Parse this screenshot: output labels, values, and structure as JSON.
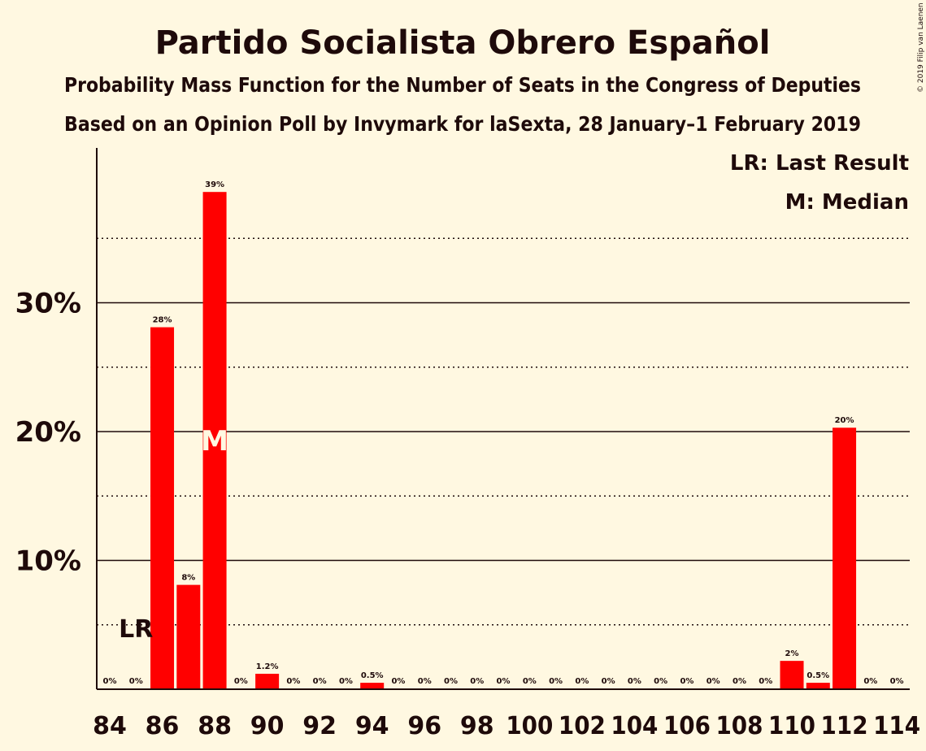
{
  "chart_data": {
    "type": "bar",
    "title": "Partido Socialista Obrero Español",
    "subtitle_1": "Probability Mass Function for the Number of Seats in the Congress of Deputies",
    "subtitle_2": "Based on an Opinion Poll by Invymark for laSexta, 28 January–1 February 2019",
    "copyright": "© 2019 Filip van Laenen",
    "legend": {
      "placement": "top-right",
      "last_result": "LR: Last Result",
      "median": "M: Median"
    },
    "xlabel": "",
    "ylabel": "",
    "x_range": [
      84,
      114
    ],
    "ylim": [
      0,
      40
    ],
    "y_major_ticks": [
      10,
      20,
      30
    ],
    "y_major_tick_labels": [
      "10%",
      "20%",
      "30%"
    ],
    "y_minor_gridlines": [
      5,
      15,
      25,
      35
    ],
    "x_tick_labels": [
      "84",
      "86",
      "88",
      "90",
      "92",
      "94",
      "96",
      "98",
      "100",
      "102",
      "104",
      "106",
      "108",
      "110",
      "112",
      "114"
    ],
    "bar_color": "#ff0000",
    "seats": [
      84,
      85,
      86,
      87,
      88,
      89,
      90,
      91,
      92,
      93,
      94,
      95,
      96,
      97,
      98,
      99,
      100,
      101,
      102,
      103,
      104,
      105,
      106,
      107,
      108,
      109,
      110,
      111,
      112,
      113,
      114
    ],
    "values": [
      0,
      0,
      28.1,
      8.1,
      38.6,
      0,
      1.2,
      0,
      0,
      0,
      0.5,
      0,
      0,
      0,
      0,
      0,
      0,
      0,
      0,
      0,
      0,
      0,
      0,
      0,
      0,
      0,
      2.2,
      0.5,
      20.3,
      0,
      0
    ],
    "labels": [
      "0%",
      "0%",
      "28%",
      "8%",
      "39%",
      "0%",
      "1.2%",
      "0%",
      "0%",
      "0%",
      "0.5%",
      "0%",
      "0%",
      "0%",
      "0%",
      "0%",
      "0%",
      "0%",
      "0%",
      "0%",
      "0%",
      "0%",
      "0%",
      "0%",
      "0%",
      "0%",
      "2%",
      "0.5%",
      "20%",
      "0%",
      "0%"
    ],
    "last_result_seat": 85,
    "last_result_marker": "LR",
    "median_seat": 88,
    "median_marker": "M"
  }
}
